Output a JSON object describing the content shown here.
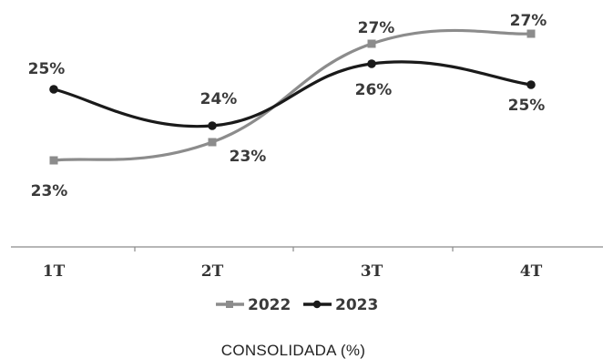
{
  "chart_data": {
    "type": "line",
    "categories": [
      "1T",
      "2T",
      "3T",
      "4T"
    ],
    "series": [
      {
        "name": "2022",
        "values": [
          23,
          23,
          27,
          27
        ],
        "value_labels": [
          "23%",
          "23%",
          "27%",
          "27%"
        ],
        "color": "#8c8c8c",
        "marker": "square"
      },
      {
        "name": "2023",
        "values": [
          25,
          24,
          26,
          25
        ],
        "value_labels": [
          "25%",
          "24%",
          "26%",
          "25%"
        ],
        "color": "#1a1a1a",
        "marker": "circle"
      }
    ],
    "title": "CONSOLIDADA (%)",
    "xlabel": "",
    "ylabel": "",
    "grid": false,
    "legend_position": "bottom"
  }
}
